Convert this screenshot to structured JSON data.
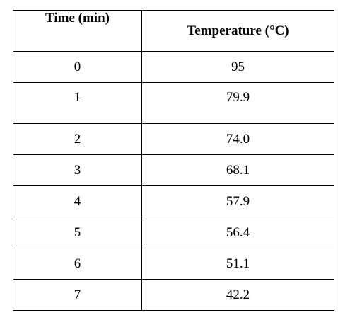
{
  "table": {
    "headers": [
      "Time (min)",
      "Temperature (°C)"
    ],
    "rows": [
      [
        "0",
        "95"
      ],
      [
        "1",
        "79.9"
      ],
      [
        "2",
        "74.0"
      ],
      [
        "3",
        "68.1"
      ],
      [
        "4",
        "57.9"
      ],
      [
        "5",
        "56.4"
      ],
      [
        "6",
        "51.1"
      ],
      [
        "7",
        "42.2"
      ]
    ]
  }
}
